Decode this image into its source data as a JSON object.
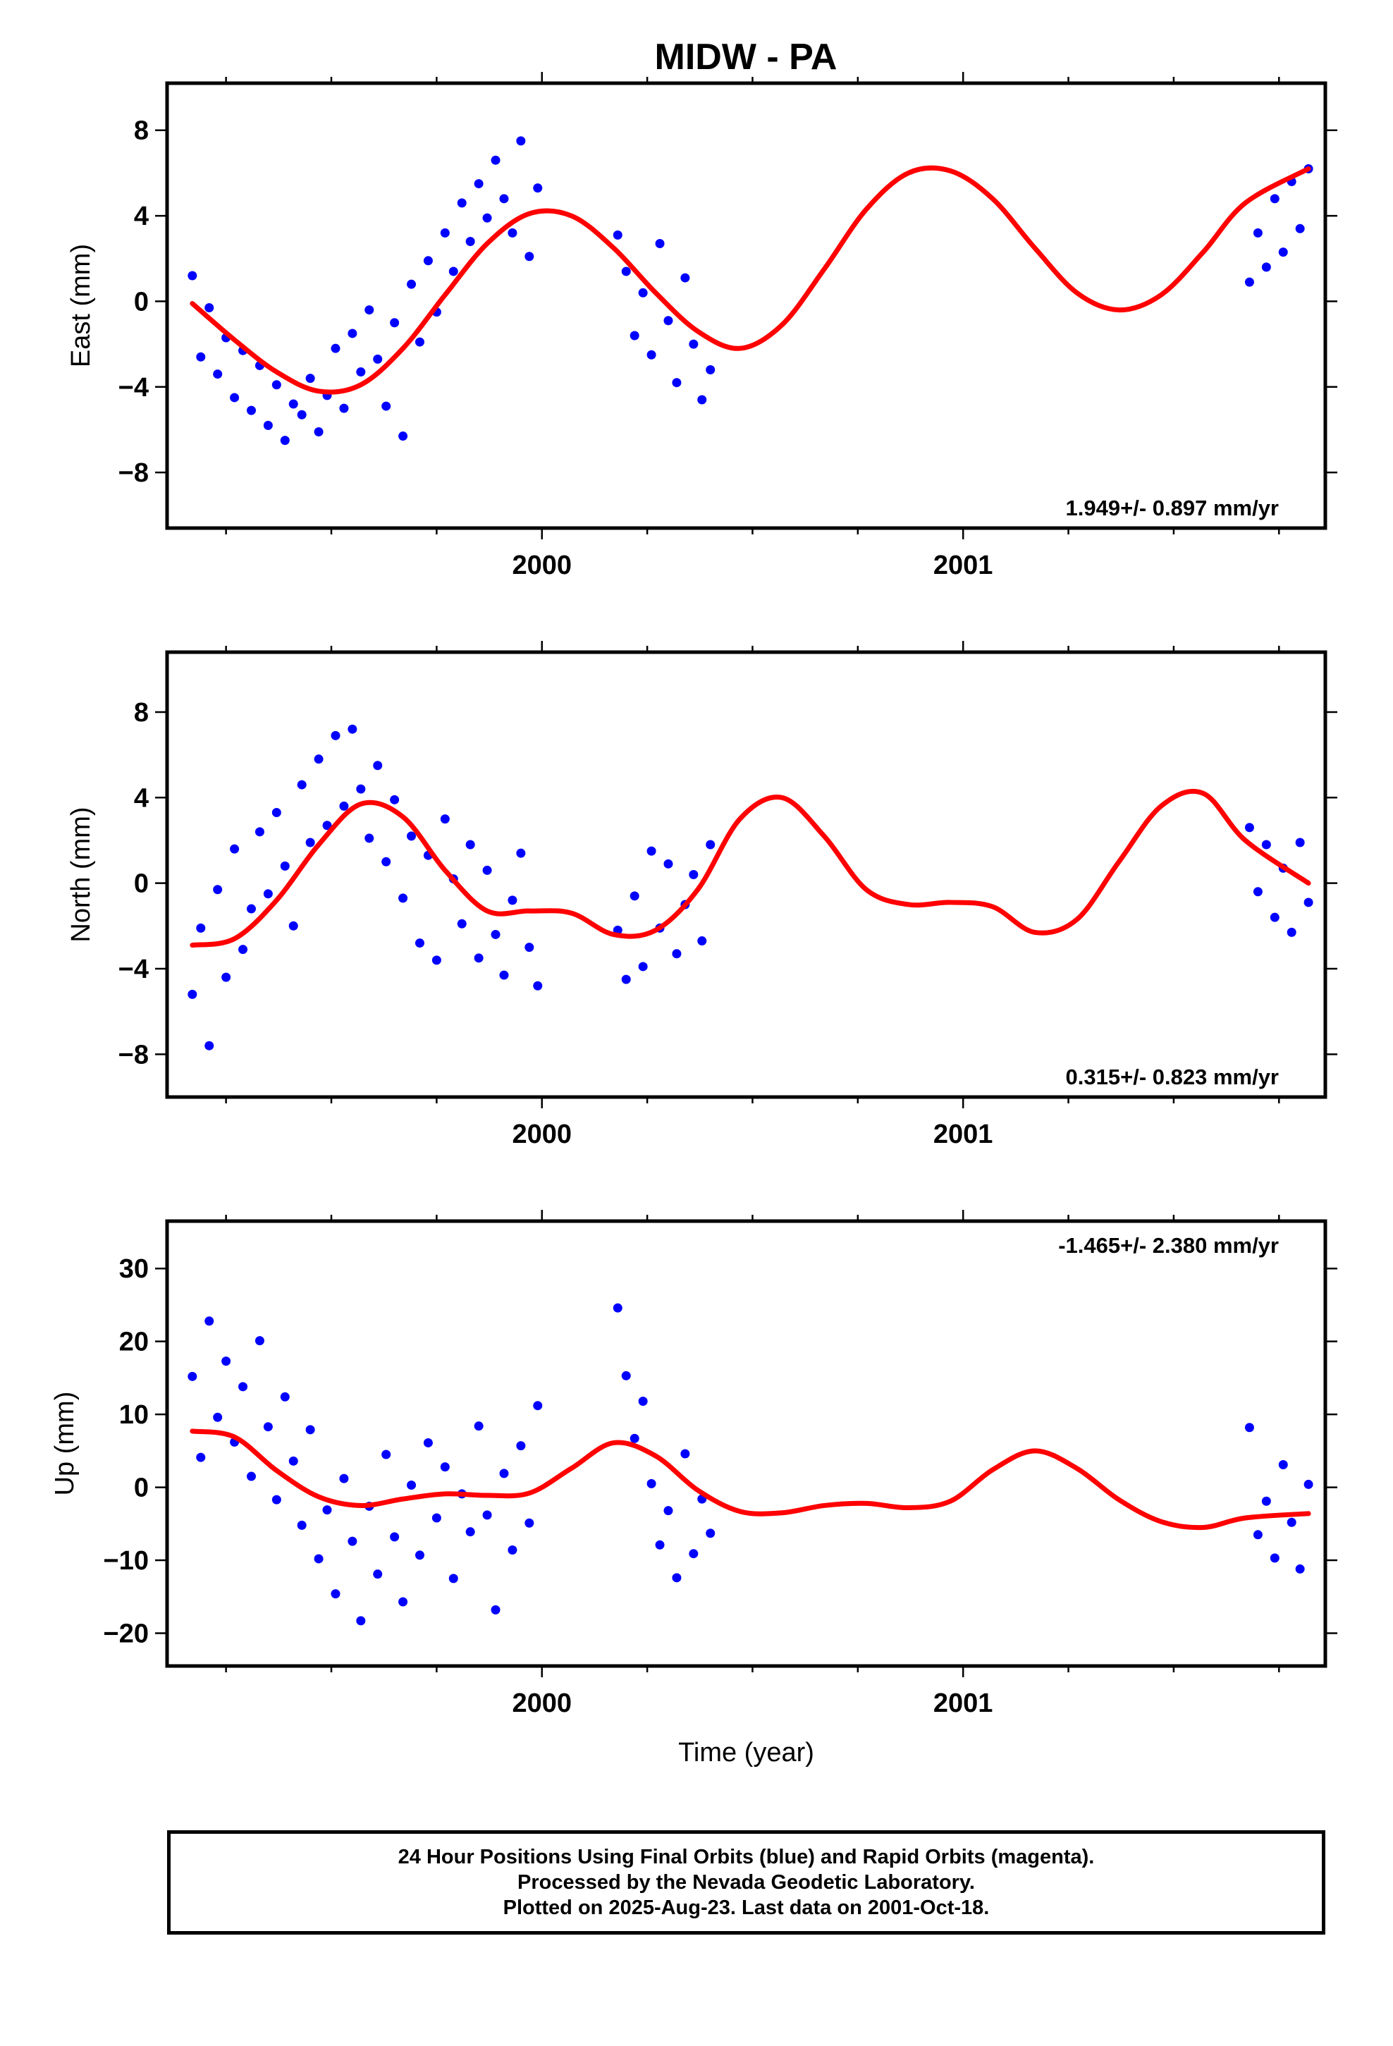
{
  "title": "MIDW - PA",
  "footer": {
    "line1": "24 Hour Positions Using Final Orbits (blue) and Rapid Orbits (magenta).",
    "line2": "Processed by the Nevada Geodetic Laboratory.",
    "line3": "Plotted on 2025-Aug-23. Last data on 2001-Oct-18."
  },
  "colors": {
    "data": "#0000ff",
    "model": "#ff0000",
    "frame": "#000000"
  },
  "chart_data": [
    {
      "type": "scatter",
      "ylabel": "East (mm)",
      "rate_label": "1.949+/- 0.897 mm/yr",
      "rate_position": "bottom-right",
      "xlim": [
        1999.11,
        2001.86
      ],
      "ylim": [
        -10.6,
        10.2
      ],
      "yticks": [
        -8,
        -4,
        0,
        4,
        8
      ],
      "xticks": [
        2000,
        2001
      ],
      "grid": false,
      "series": [
        {
          "role": "data",
          "x": [
            1999.17,
            1999.19,
            1999.21,
            1999.23,
            1999.25,
            1999.27,
            1999.29,
            1999.31,
            1999.33,
            1999.35,
            1999.37,
            1999.39,
            1999.41,
            1999.43,
            1999.45,
            1999.47,
            1999.49,
            1999.51,
            1999.53,
            1999.55,
            1999.57,
            1999.59,
            1999.61,
            1999.63,
            1999.65,
            1999.67,
            1999.69,
            1999.71,
            1999.73,
            1999.75,
            1999.77,
            1999.79,
            1999.81,
            1999.83,
            1999.85,
            1999.87,
            1999.89,
            1999.91,
            1999.93,
            1999.95,
            1999.97,
            1999.99,
            2000.18,
            2000.2,
            2000.22,
            2000.24,
            2000.26,
            2000.28,
            2000.3,
            2000.32,
            2000.34,
            2000.36,
            2000.38,
            2000.4,
            2001.68,
            2001.7,
            2001.72,
            2001.74,
            2001.76,
            2001.78,
            2001.8,
            2001.82
          ],
          "y": [
            1.2,
            -2.6,
            -0.3,
            -3.4,
            -1.7,
            -4.5,
            -2.3,
            -5.1,
            -3.0,
            -5.8,
            -3.9,
            -6.5,
            -4.8,
            -5.3,
            -3.6,
            -6.1,
            -4.4,
            -2.2,
            -5.0,
            -1.5,
            -3.3,
            -0.4,
            -2.7,
            -4.9,
            -1.0,
            -6.3,
            0.8,
            -1.9,
            1.9,
            -0.5,
            3.2,
            1.4,
            4.6,
            2.8,
            5.5,
            3.9,
            6.6,
            4.8,
            3.2,
            7.5,
            2.1,
            5.3,
            3.1,
            1.4,
            -1.6,
            0.4,
            -2.5,
            2.7,
            -0.9,
            -3.8,
            1.1,
            -2.0,
            -4.6,
            -3.2,
            0.9,
            3.2,
            1.6,
            4.8,
            2.3,
            5.6,
            3.4,
            6.2
          ]
        },
        {
          "role": "model",
          "x": [
            1999.17,
            1999.27,
            1999.37,
            1999.47,
            1999.57,
            1999.67,
            1999.77,
            1999.87,
            1999.97,
            2000.07,
            2000.17,
            2000.27,
            2000.37,
            2000.47,
            2000.57,
            2000.67,
            2000.77,
            2000.87,
            2000.97,
            2001.07,
            2001.17,
            2001.27,
            2001.37,
            2001.47,
            2001.57,
            2001.67,
            2001.82
          ],
          "y": [
            -0.1,
            -1.8,
            -3.3,
            -4.2,
            -3.9,
            -2.2,
            0.3,
            2.7,
            4.1,
            4.0,
            2.5,
            0.4,
            -1.4,
            -2.2,
            -1.1,
            1.5,
            4.3,
            6.0,
            6.1,
            4.8,
            2.5,
            0.4,
            -0.4,
            0.3,
            2.3,
            4.6,
            6.2
          ]
        }
      ]
    },
    {
      "type": "scatter",
      "ylabel": "North (mm)",
      "rate_label": "0.315+/- 0.823 mm/yr",
      "rate_position": "bottom-right",
      "xlim": [
        1999.11,
        2001.86
      ],
      "ylim": [
        -10.0,
        10.8
      ],
      "yticks": [
        -8,
        -4,
        0,
        4,
        8
      ],
      "xticks": [
        2000,
        2001
      ],
      "grid": false,
      "series": [
        {
          "role": "data",
          "x": [
            1999.17,
            1999.19,
            1999.21,
            1999.23,
            1999.25,
            1999.27,
            1999.29,
            1999.31,
            1999.33,
            1999.35,
            1999.37,
            1999.39,
            1999.41,
            1999.43,
            1999.45,
            1999.47,
            1999.49,
            1999.51,
            1999.53,
            1999.55,
            1999.57,
            1999.59,
            1999.61,
            1999.63,
            1999.65,
            1999.67,
            1999.69,
            1999.71,
            1999.73,
            1999.75,
            1999.77,
            1999.79,
            1999.81,
            1999.83,
            1999.85,
            1999.87,
            1999.89,
            1999.91,
            1999.93,
            1999.95,
            1999.97,
            1999.99,
            2000.18,
            2000.2,
            2000.22,
            2000.24,
            2000.26,
            2000.28,
            2000.3,
            2000.32,
            2000.34,
            2000.36,
            2000.38,
            2000.4,
            2001.68,
            2001.7,
            2001.72,
            2001.74,
            2001.76,
            2001.78,
            2001.8,
            2001.82
          ],
          "y": [
            -5.2,
            -2.1,
            -7.6,
            -0.3,
            -4.4,
            1.6,
            -3.1,
            -1.2,
            2.4,
            -0.5,
            3.3,
            0.8,
            -2.0,
            4.6,
            1.9,
            5.8,
            2.7,
            6.9,
            3.6,
            7.2,
            4.4,
            2.1,
            5.5,
            1.0,
            3.9,
            -0.7,
            2.2,
            -2.8,
            1.3,
            -3.6,
            3.0,
            0.2,
            -1.9,
            1.8,
            -3.5,
            0.6,
            -2.4,
            -4.3,
            -0.8,
            1.4,
            -3.0,
            -4.8,
            -2.2,
            -4.5,
            -0.6,
            -3.9,
            1.5,
            -2.1,
            0.9,
            -3.3,
            -1.0,
            0.4,
            -2.7,
            1.8,
            2.6,
            -0.4,
            1.8,
            -1.6,
            0.7,
            -2.3,
            1.9,
            -0.9
          ]
        },
        {
          "role": "model",
          "x": [
            1999.17,
            1999.27,
            1999.37,
            1999.47,
            1999.57,
            1999.67,
            1999.77,
            1999.87,
            1999.97,
            2000.07,
            2000.17,
            2000.27,
            2000.37,
            2000.47,
            2000.57,
            2000.67,
            2000.77,
            2000.87,
            2000.97,
            2001.07,
            2001.17,
            2001.27,
            2001.37,
            2001.47,
            2001.57,
            2001.67,
            2001.82
          ],
          "y": [
            -2.9,
            -2.6,
            -0.8,
            1.8,
            3.7,
            3.1,
            0.6,
            -1.3,
            -1.3,
            -1.4,
            -2.4,
            -2.2,
            -0.3,
            3.0,
            4.0,
            2.2,
            -0.3,
            -1.0,
            -0.9,
            -1.1,
            -2.3,
            -1.7,
            1.0,
            3.6,
            4.2,
            2.0,
            0.0
          ]
        }
      ]
    },
    {
      "type": "scatter",
      "ylabel": "Up (mm)",
      "xlabel": "Time (year)",
      "rate_label": "-1.465+/- 2.380 mm/yr",
      "rate_position": "top-right",
      "xlim": [
        1999.11,
        2001.86
      ],
      "ylim": [
        -24.5,
        36.5
      ],
      "yticks": [
        -20,
        -10,
        0,
        10,
        20,
        30
      ],
      "xticks": [
        2000,
        2001
      ],
      "grid": false,
      "series": [
        {
          "role": "data",
          "x": [
            1999.17,
            1999.19,
            1999.21,
            1999.23,
            1999.25,
            1999.27,
            1999.29,
            1999.31,
            1999.33,
            1999.35,
            1999.37,
            1999.39,
            1999.41,
            1999.43,
            1999.45,
            1999.47,
            1999.49,
            1999.51,
            1999.53,
            1999.55,
            1999.57,
            1999.59,
            1999.61,
            1999.63,
            1999.65,
            1999.67,
            1999.69,
            1999.71,
            1999.73,
            1999.75,
            1999.77,
            1999.79,
            1999.81,
            1999.83,
            1999.85,
            1999.87,
            1999.89,
            1999.91,
            1999.93,
            1999.95,
            1999.97,
            1999.99,
            2000.18,
            2000.2,
            2000.22,
            2000.24,
            2000.26,
            2000.28,
            2000.3,
            2000.32,
            2000.34,
            2000.36,
            2000.38,
            2000.4,
            2001.68,
            2001.7,
            2001.72,
            2001.74,
            2001.76,
            2001.78,
            2001.8,
            2001.82
          ],
          "y": [
            15.2,
            4.1,
            22.8,
            9.6,
            17.3,
            6.2,
            13.8,
            1.5,
            20.1,
            8.3,
            -1.7,
            12.4,
            3.6,
            -5.2,
            7.9,
            -9.8,
            -3.1,
            -14.6,
            1.2,
            -7.4,
            -18.3,
            -2.6,
            -11.9,
            4.5,
            -6.8,
            -15.7,
            0.3,
            -9.3,
            6.1,
            -4.2,
            2.8,
            -12.5,
            -0.9,
            -6.1,
            8.4,
            -3.8,
            -16.8,
            1.9,
            -8.6,
            5.7,
            -4.9,
            11.2,
            24.6,
            15.3,
            6.7,
            11.8,
            0.5,
            -7.9,
            -3.2,
            -12.4,
            4.6,
            -9.1,
            -1.6,
            -6.3,
            8.2,
            -6.5,
            -1.9,
            -9.7,
            3.1,
            -4.8,
            -11.2,
            0.4
          ]
        },
        {
          "role": "model",
          "x": [
            1999.17,
            1999.27,
            1999.37,
            1999.47,
            1999.57,
            1999.67,
            1999.77,
            1999.87,
            1999.97,
            2000.07,
            2000.17,
            2000.27,
            2000.37,
            2000.47,
            2000.57,
            2000.67,
            2000.77,
            2000.87,
            2000.97,
            2001.07,
            2001.17,
            2001.27,
            2001.37,
            2001.47,
            2001.57,
            2001.67,
            2001.82
          ],
          "y": [
            7.7,
            6.9,
            2.3,
            -1.3,
            -2.5,
            -1.6,
            -0.9,
            -1.1,
            -0.8,
            2.6,
            6.1,
            4.3,
            -0.4,
            -3.3,
            -3.5,
            -2.5,
            -2.2,
            -2.8,
            -1.9,
            2.4,
            5.0,
            2.6,
            -1.7,
            -4.7,
            -5.5,
            -4.2,
            -3.6
          ]
        }
      ]
    }
  ]
}
